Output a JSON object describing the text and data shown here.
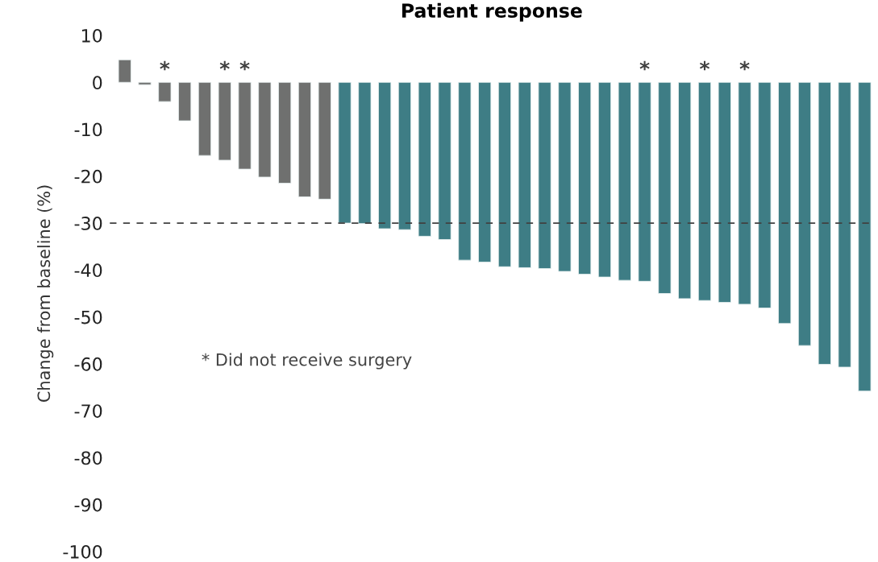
{
  "chart_data": {
    "type": "bar",
    "title": "Patient response",
    "ylabel": "Change from baseline (%)",
    "categories": [
      null,
      null,
      null,
      null,
      null,
      null,
      null,
      null,
      null,
      null,
      null,
      null,
      null,
      null,
      null,
      null,
      null,
      null,
      null,
      null,
      null,
      null,
      null,
      null,
      null,
      null,
      null,
      null,
      null,
      null,
      null,
      null,
      null,
      null,
      null,
      null,
      null,
      null
    ],
    "values": [
      4.8,
      -0.5,
      -4.1,
      -8.2,
      -15.6,
      -16.6,
      -18.5,
      -20.2,
      -21.5,
      -24.4,
      -24.9,
      -30,
      -30.1,
      -31.2,
      -31.4,
      -32.8,
      -33.5,
      -37.9,
      -38.3,
      -39.3,
      -39.5,
      -39.7,
      -40.3,
      -40.9,
      -41.5,
      -42.2,
      -42.4,
      -45,
      -46.1,
      -46.5,
      -46.9,
      -47.3,
      -48.1,
      -51.4,
      -56.1,
      -60.1,
      -60.7,
      -65.8
    ],
    "colors": [
      "#6f706f",
      "#6f706f",
      "#6f706f",
      "#6f706f",
      "#6f706f",
      "#6f706f",
      "#6f706f",
      "#6f706f",
      "#6f706f",
      "#6f706f",
      "#6f706f",
      "#3e7d85",
      "#3e7d85",
      "#3e7d85",
      "#3e7d85",
      "#3e7d85",
      "#3e7d85",
      "#3e7d85",
      "#3e7d85",
      "#3e7d85",
      "#3e7d85",
      "#3e7d85",
      "#3e7d85",
      "#3e7d85",
      "#3e7d85",
      "#3e7d85",
      "#3e7d85",
      "#3e7d85",
      "#3e7d85",
      "#3e7d85",
      "#3e7d85",
      "#3e7d85",
      "#3e7d85",
      "#3e7d85",
      "#3e7d85",
      "#3e7d85",
      "#3e7d85",
      "#3e7d85"
    ],
    "value_labels": [
      null,
      null,
      "*",
      null,
      null,
      "*",
      "*",
      null,
      null,
      null,
      null,
      null,
      null,
      null,
      null,
      null,
      null,
      null,
      null,
      null,
      null,
      null,
      null,
      null,
      null,
      null,
      "*",
      null,
      null,
      "*",
      null,
      "*",
      null,
      null,
      null,
      null,
      null,
      null
    ],
    "ylim": [
      -100,
      10
    ],
    "yticks": [
      10,
      0,
      -10,
      -20,
      -30,
      -40,
      -50,
      -60,
      -70,
      -80,
      -90,
      -100
    ],
    "ref_lines": [
      {
        "axis": "y",
        "value": -30,
        "color": "#404040",
        "line_style": "dashed"
      }
    ],
    "annotations": [
      "* Did not receive surgery"
    ],
    "grid": false,
    "legend": false
  }
}
